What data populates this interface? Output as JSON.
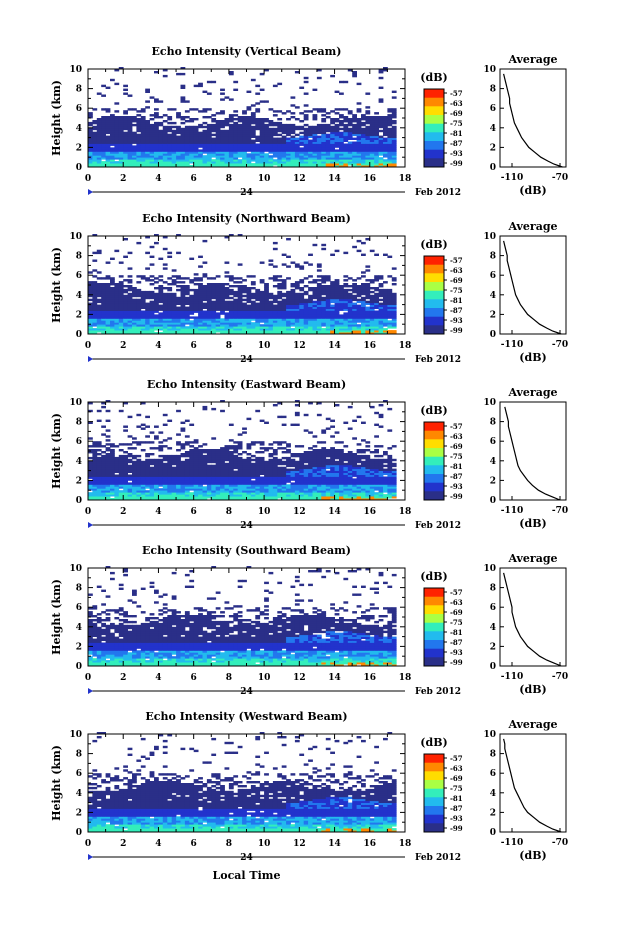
{
  "figure": {
    "date_label": "Feb 2012",
    "date_day": "24",
    "xlabel": "Local Time",
    "colorbar_unit": "(dB)",
    "colorbar_ticks": [
      "-57",
      "-63",
      "-69",
      "-75",
      "-81",
      "-87",
      "-93",
      "-99"
    ],
    "colorbar_colors": [
      "#ff2200",
      "#ff8800",
      "#ffdd00",
      "#aaff44",
      "#33eebb",
      "#22bbee",
      "#2277ee",
      "#2233cc",
      "#2a2f88"
    ],
    "avg_title": "Average",
    "avg_xlabel": "(dB)",
    "avg_xticks": [
      "-110",
      "-70"
    ],
    "xticks": [
      "0",
      "2",
      "4",
      "6",
      "8",
      "10",
      "12",
      "14",
      "16",
      "18"
    ],
    "yticks": [
      "0",
      "2",
      "4",
      "6",
      "8",
      "10"
    ],
    "ylabel": "Height (km)"
  },
  "chart_data": [
    {
      "type": "heatmap",
      "title": "Echo Intensity (Vertical Beam)",
      "xlabel": "Local Time",
      "ylabel": "Height (km)",
      "xlim": [
        0,
        18
      ],
      "ylim": [
        0,
        10
      ],
      "data_extent_hours": [
        0,
        17.5
      ],
      "avg_profile": {
        "title": "Average",
        "xlabel": "(dB)",
        "xlim": [
          -120,
          -65
        ],
        "heights": [
          0,
          0.3,
          0.6,
          1,
          1.5,
          2,
          2.5,
          3,
          3.5,
          4,
          4.5,
          5,
          5.5,
          6,
          6.5,
          7,
          7.5,
          8,
          8.5,
          9,
          9.5
        ],
        "values": [
          -68,
          -75,
          -80,
          -86,
          -91,
          -96,
          -99,
          -102,
          -104,
          -106,
          -108,
          -109,
          -110,
          -111,
          -112,
          -112,
          -113,
          -114,
          -115,
          -116,
          -117
        ]
      }
    },
    {
      "type": "heatmap",
      "title": "Echo Intensity (Northward Beam)",
      "xlabel": "Local Time",
      "ylabel": "Height (km)",
      "xlim": [
        0,
        18
      ],
      "ylim": [
        0,
        10
      ],
      "data_extent_hours": [
        0,
        17.5
      ],
      "avg_profile": {
        "title": "Average",
        "xlabel": "(dB)",
        "xlim": [
          -120,
          -65
        ],
        "heights": [
          0,
          0.3,
          0.6,
          1,
          1.5,
          2,
          2.5,
          3,
          3.5,
          4,
          4.5,
          5,
          5.5,
          6,
          6.5,
          7,
          7.5,
          8,
          8.5,
          9,
          9.5
        ],
        "values": [
          -69,
          -76,
          -81,
          -87,
          -92,
          -97,
          -100,
          -103,
          -105,
          -107,
          -108,
          -109,
          -110,
          -111,
          -112,
          -113,
          -114,
          -114,
          -115,
          -116,
          -117
        ]
      }
    },
    {
      "type": "heatmap",
      "title": "Echo Intensity (Eastward Beam)",
      "xlabel": "Local Time",
      "ylabel": "Height (km)",
      "xlim": [
        0,
        18
      ],
      "ylim": [
        0,
        10
      ],
      "data_extent_hours": [
        0,
        17.5
      ],
      "avg_profile": {
        "title": "Average",
        "xlabel": "(dB)",
        "xlim": [
          -120,
          -65
        ],
        "heights": [
          0,
          0.3,
          0.6,
          1,
          1.5,
          2,
          2.5,
          3,
          3.5,
          4,
          4.5,
          5,
          5.5,
          6,
          6.5,
          7,
          7.5,
          8,
          8.5,
          9,
          9.5
        ],
        "values": [
          -70,
          -76,
          -82,
          -88,
          -93,
          -97,
          -100,
          -103,
          -105,
          -106,
          -107,
          -108,
          -109,
          -110,
          -111,
          -112,
          -113,
          -113,
          -114,
          -115,
          -116
        ]
      }
    },
    {
      "type": "heatmap",
      "title": "Echo Intensity (Southward Beam)",
      "xlabel": "Local Time",
      "ylabel": "Height (km)",
      "xlim": [
        0,
        18
      ],
      "ylim": [
        0,
        10
      ],
      "data_extent_hours": [
        0,
        17.5
      ],
      "avg_profile": {
        "title": "Average",
        "xlabel": "(dB)",
        "xlim": [
          -120,
          -65
        ],
        "heights": [
          0,
          0.3,
          0.6,
          1,
          1.5,
          2,
          2.5,
          3,
          3.5,
          4,
          4.5,
          5,
          5.5,
          6,
          6.5,
          7,
          7.5,
          8,
          8.5,
          9,
          9.5
        ],
        "values": [
          -69,
          -75,
          -81,
          -87,
          -92,
          -97,
          -100,
          -103,
          -105,
          -107,
          -108,
          -109,
          -110,
          -110,
          -111,
          -112,
          -113,
          -114,
          -115,
          -116,
          -117
        ]
      }
    },
    {
      "type": "heatmap",
      "title": "Echo Intensity (Westward Beam)",
      "xlabel": "Local Time",
      "ylabel": "Height (km)",
      "xlim": [
        0,
        18
      ],
      "ylim": [
        0,
        10
      ],
      "data_extent_hours": [
        0,
        17.5
      ],
      "avg_profile": {
        "title": "Average",
        "xlabel": "(dB)",
        "xlim": [
          -120,
          -65
        ],
        "heights": [
          0,
          0.3,
          0.6,
          1,
          1.5,
          2,
          2.5,
          3,
          3.5,
          4,
          4.5,
          5,
          5.5,
          6,
          6.5,
          7,
          7.5,
          8,
          8.5,
          9,
          9.5
        ],
        "values": [
          -69,
          -76,
          -81,
          -87,
          -92,
          -97,
          -100,
          -102,
          -104,
          -106,
          -108,
          -109,
          -110,
          -111,
          -112,
          -113,
          -114,
          -115,
          -116,
          -116,
          -117
        ]
      }
    }
  ]
}
